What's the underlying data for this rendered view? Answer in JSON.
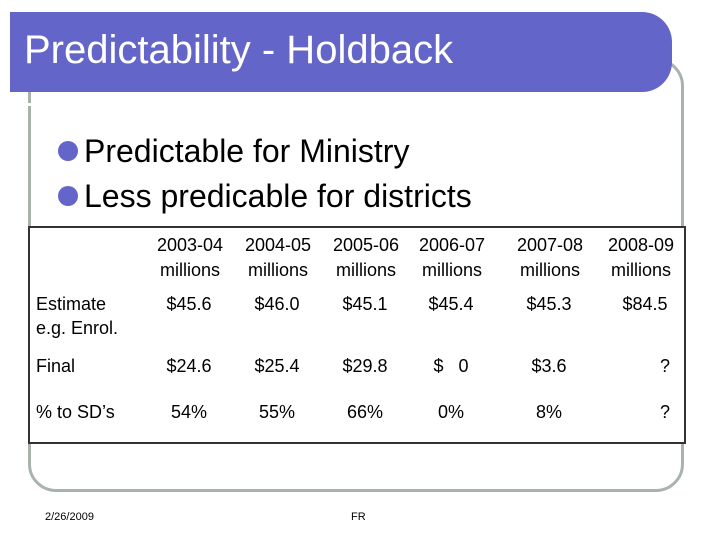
{
  "slide": {
    "title": "Predictability - Holdback",
    "bullets": [
      "Predictable for Ministry",
      "Less predicable for districts"
    ]
  },
  "table": {
    "columns": [
      {
        "year": "2003-04",
        "unit": "millions"
      },
      {
        "year": "2004-05",
        "unit": "millions"
      },
      {
        "year": "2005-06",
        "unit": "millions"
      },
      {
        "year": "2006-07",
        "unit": "millions"
      },
      {
        "year": "2007-08",
        "unit": "millions"
      },
      {
        "year": "2008-09",
        "unit": "millions"
      }
    ],
    "rows": [
      {
        "label_line1": "Estimate",
        "label_line2": "e.g. Enrol.",
        "values": [
          "$45.6",
          "$46.0",
          "$45.1",
          "$45.4",
          "$45.3",
          "$84.5"
        ]
      },
      {
        "label_line1": "Final",
        "values": [
          "$24.6",
          "$25.4",
          "$29.8",
          "$   0",
          "$3.6",
          "?"
        ]
      },
      {
        "label_line1": "% to SD’s",
        "values": [
          "54%",
          "55%",
          "66%",
          "0%",
          "8%",
          "?"
        ]
      }
    ]
  },
  "footer": {
    "date": "2/26/2009",
    "center": "FR"
  },
  "colors": {
    "title_bar": "#6465c9",
    "frame": "#a9b3ac",
    "bullet": "#6465c9"
  }
}
